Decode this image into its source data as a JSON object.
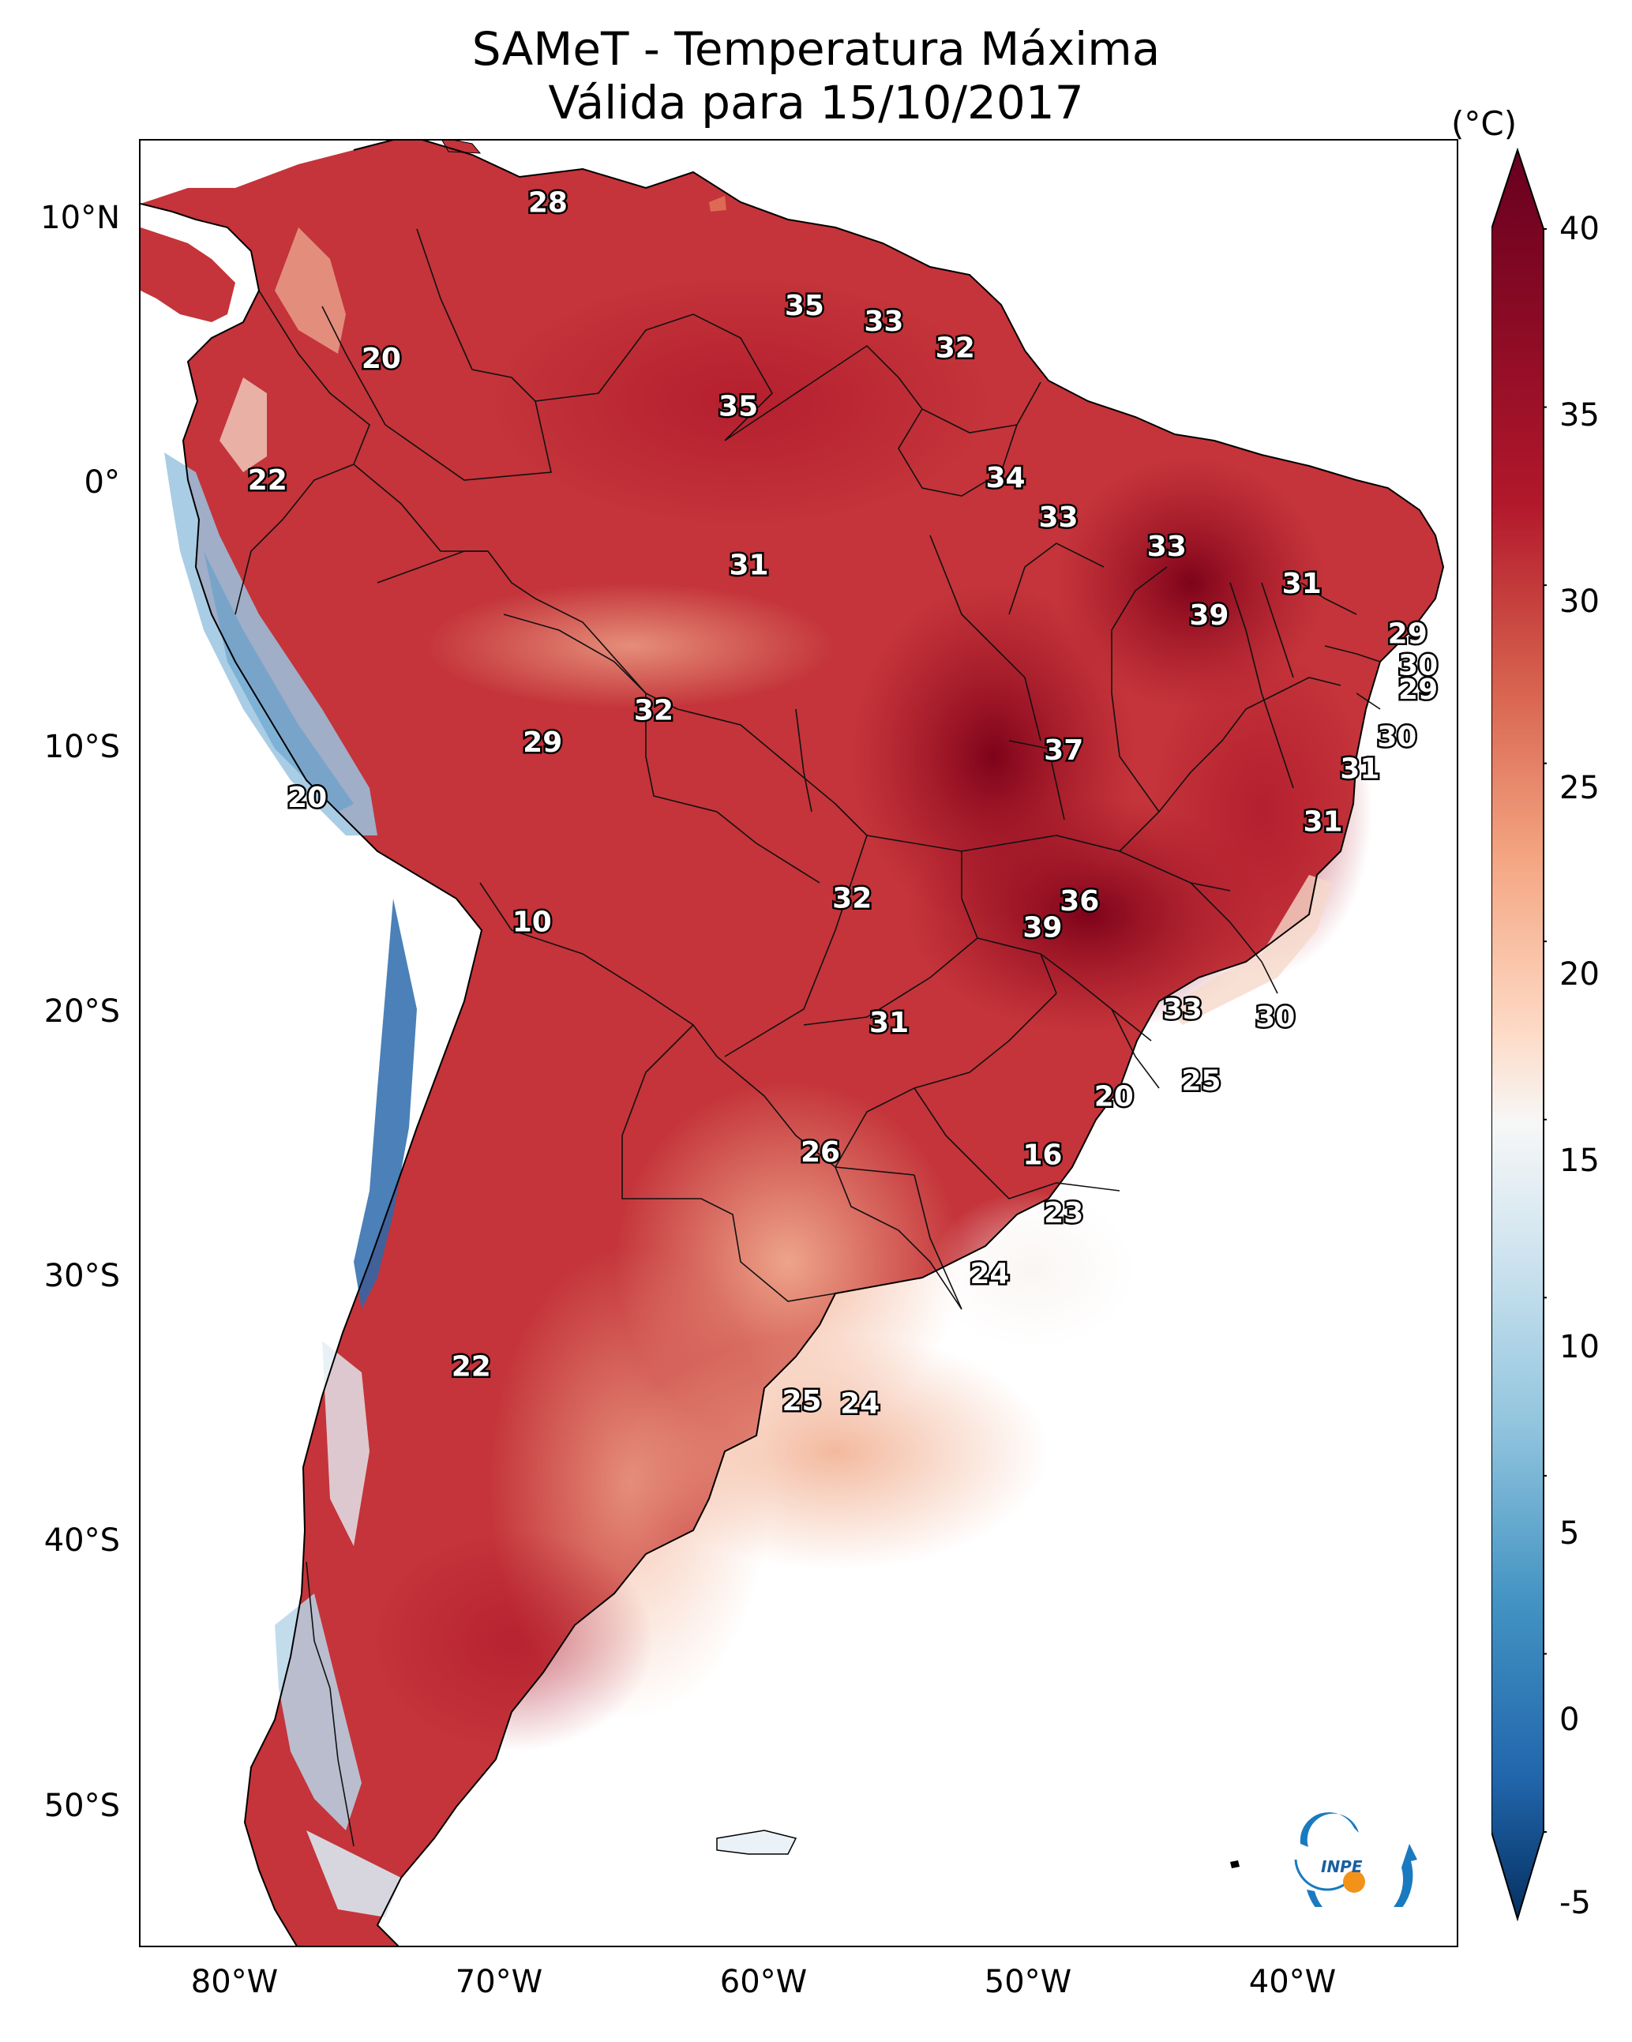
{
  "title": {
    "line1": "SAMeT - Temperatura Máxima",
    "line2": "Válida para 15/10/2017"
  },
  "axes": {
    "lat_ticks": [
      "10°N",
      "0°",
      "10°S",
      "20°S",
      "30°S",
      "40°S",
      "50°S"
    ],
    "lon_ticks": [
      "80°W",
      "70°W",
      "60°W",
      "50°W",
      "40°W"
    ]
  },
  "colorbar": {
    "unit": "(°C)",
    "min": -7,
    "max": 41,
    "ticks": [
      "40",
      "35",
      "30",
      "25",
      "20",
      "15",
      "10",
      "5",
      "0",
      "-5"
    ]
  },
  "point_labels": [
    {
      "value": "28",
      "lon": -67.5,
      "lat": 10.5
    },
    {
      "value": "35",
      "lon": -57.8,
      "lat": 6.6
    },
    {
      "value": "33",
      "lon": -54.8,
      "lat": 6.0
    },
    {
      "value": "32",
      "lon": -52.1,
      "lat": 5.0
    },
    {
      "value": "20",
      "lon": -73.8,
      "lat": 4.6
    },
    {
      "value": "35",
      "lon": -60.3,
      "lat": 2.8
    },
    {
      "value": "22",
      "lon": -78.1,
      "lat": 0.0
    },
    {
      "value": "34",
      "lon": -50.2,
      "lat": 0.1
    },
    {
      "value": "33",
      "lon": -48.2,
      "lat": -1.4
    },
    {
      "value": "33",
      "lon": -44.1,
      "lat": -2.5
    },
    {
      "value": "31",
      "lon": -59.9,
      "lat": -3.2
    },
    {
      "value": "31",
      "lon": -39.0,
      "lat": -3.9
    },
    {
      "value": "39",
      "lon": -42.5,
      "lat": -5.1
    },
    {
      "value": "29",
      "lon": -35.0,
      "lat": -5.8
    },
    {
      "value": "30",
      "lon": -34.6,
      "lat": -7.0
    },
    {
      "value": "29",
      "lon": -34.6,
      "lat": -7.9
    },
    {
      "value": "32",
      "lon": -63.5,
      "lat": -8.7
    },
    {
      "value": "29",
      "lon": -67.7,
      "lat": -9.9
    },
    {
      "value": "30",
      "lon": -35.4,
      "lat": -9.7
    },
    {
      "value": "37",
      "lon": -48.0,
      "lat": -10.2
    },
    {
      "value": "31",
      "lon": -36.8,
      "lat": -10.9
    },
    {
      "value": "20",
      "lon": -76.6,
      "lat": -12.0
    },
    {
      "value": "31",
      "lon": -38.2,
      "lat": -12.9
    },
    {
      "value": "32",
      "lon": -56.0,
      "lat": -15.8
    },
    {
      "value": "36",
      "lon": -47.4,
      "lat": -15.9
    },
    {
      "value": "39",
      "lon": -48.8,
      "lat": -16.9
    },
    {
      "value": "10",
      "lon": -68.1,
      "lat": -16.7
    },
    {
      "value": "33",
      "lon": -43.5,
      "lat": -20.0
    },
    {
      "value": "30",
      "lon": -40.0,
      "lat": -20.3
    },
    {
      "value": "31",
      "lon": -54.6,
      "lat": -20.5
    },
    {
      "value": "25",
      "lon": -42.8,
      "lat": -22.7
    },
    {
      "value": "20",
      "lon": -46.1,
      "lat": -23.3
    },
    {
      "value": "26",
      "lon": -57.2,
      "lat": -25.4
    },
    {
      "value": "16",
      "lon": -48.8,
      "lat": -25.5
    },
    {
      "value": "23",
      "lon": -48.0,
      "lat": -27.7
    },
    {
      "value": "24",
      "lon": -50.8,
      "lat": -30.0
    },
    {
      "value": "22",
      "lon": -70.4,
      "lat": -33.5
    },
    {
      "value": "25",
      "lon": -57.9,
      "lat": -34.8
    },
    {
      "value": "24",
      "lon": -55.7,
      "lat": -34.9
    }
  ],
  "logo": {
    "text": "INPE"
  }
}
